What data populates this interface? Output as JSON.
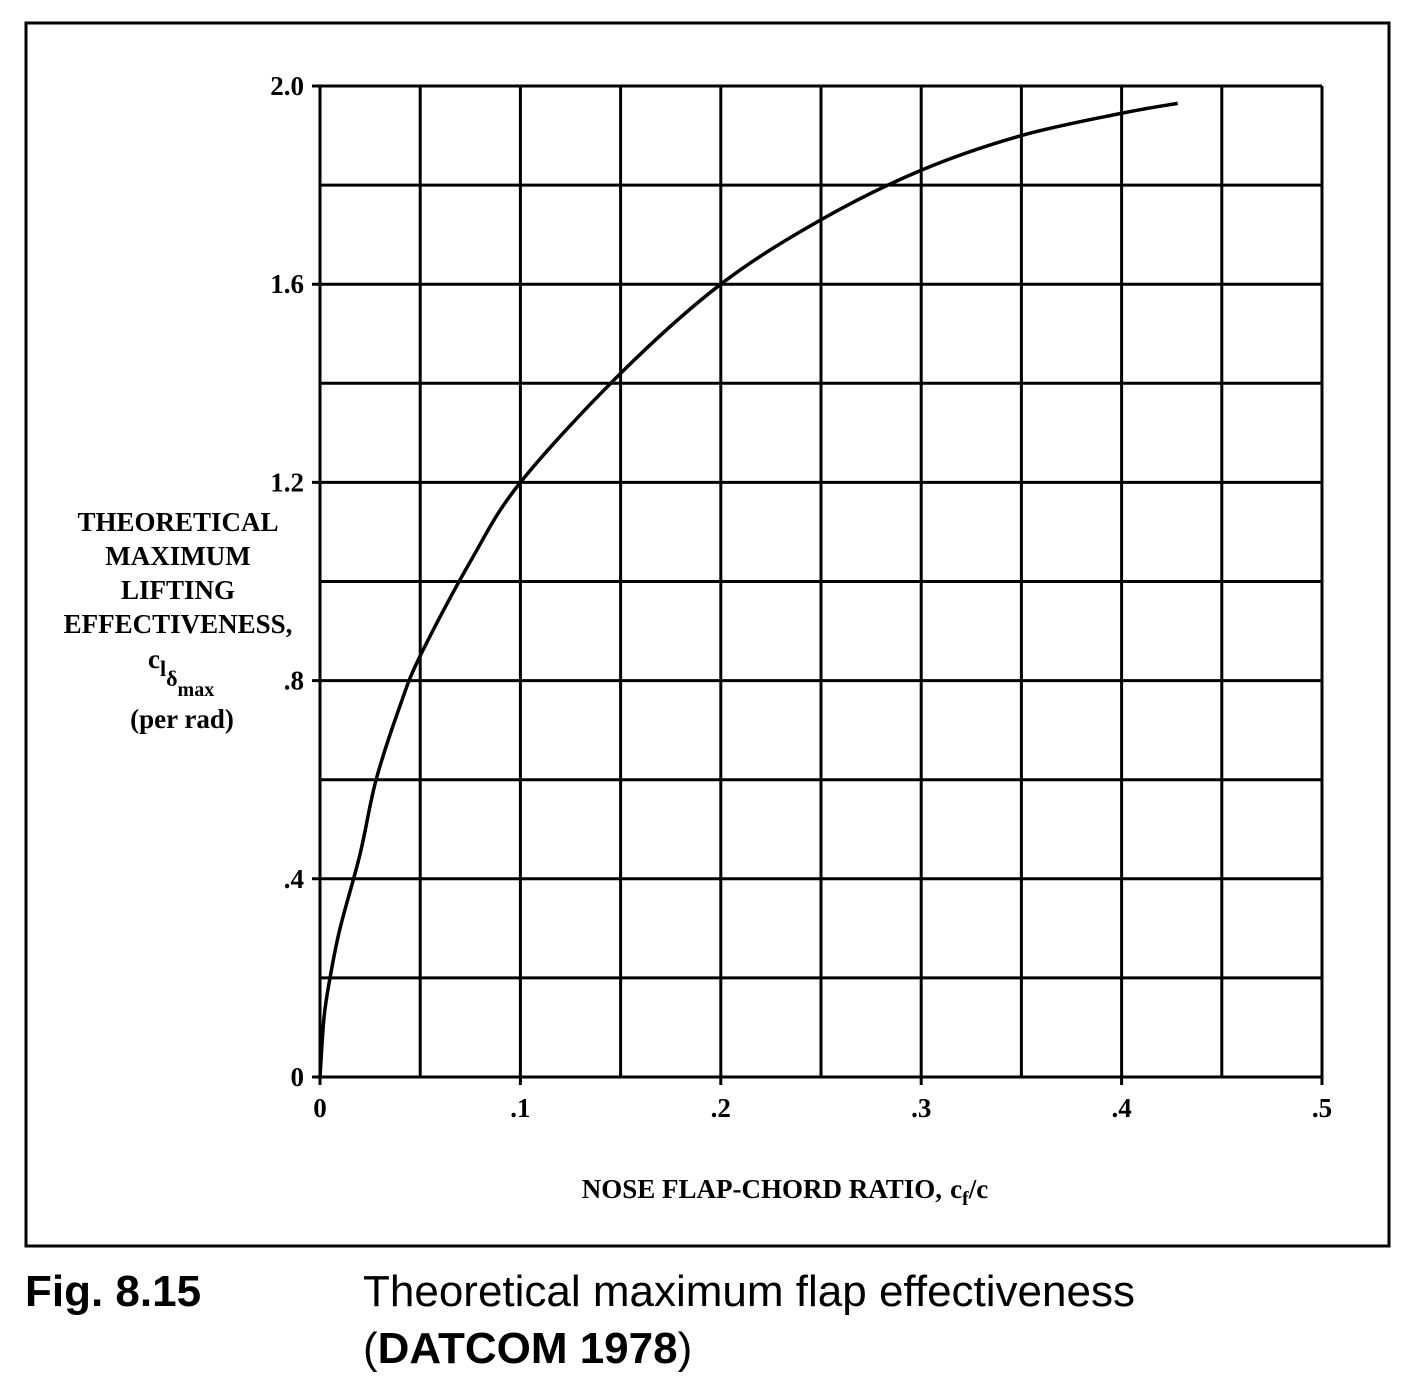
{
  "chart_data": {
    "type": "line",
    "ylabel_lines": [
      "THEORETICAL",
      "MAXIMUM",
      "LIFTING",
      "EFFECTIVENESS,"
    ],
    "ylabel_symbol": [
      "c",
      "l",
      "δ",
      "max"
    ],
    "ylabel_unit": "(per rad)",
    "xlabel": "NOSE FLAP-CHORD RATIO,",
    "xlabel_symbol": [
      "c",
      "f",
      "/c"
    ],
    "x": [
      0,
      0.002,
      0.005,
      0.01,
      0.02,
      0.028,
      0.04,
      0.05,
      0.075,
      0.1,
      0.15,
      0.2,
      0.25,
      0.3,
      0.35,
      0.4,
      0.428
    ],
    "values": [
      0,
      0.12,
      0.2,
      0.3,
      0.45,
      0.6,
      0.75,
      0.85,
      1.04,
      1.2,
      1.42,
      1.6,
      1.73,
      1.83,
      1.9,
      1.945,
      1.965
    ],
    "color": "#000000",
    "xlim": [
      0,
      0.5
    ],
    "ylim": [
      0,
      2
    ],
    "xticks": [
      0,
      {
        "value": 0.1,
        "label": ".1"
      },
      {
        "value": 0.2,
        "label": ".2"
      },
      {
        "value": 0.3,
        "label": ".3"
      },
      {
        "value": 0.4,
        "label": ".4"
      },
      {
        "value": 0.5,
        "label": ".5"
      }
    ],
    "yticks": [
      0,
      {
        "value": 0.4,
        "label": ".4"
      },
      {
        "value": 0.8,
        "label": ".8"
      },
      {
        "value": 1.2,
        "label": "1.2"
      },
      {
        "value": 1.6,
        "label": "1.6"
      },
      {
        "value": 2,
        "label": "2.0"
      }
    ],
    "xminor": [
      0.05,
      0.15,
      0.25,
      0.35,
      0.45
    ],
    "yminor": [
      0.2,
      0.6,
      1.0,
      1.4,
      1.8
    ],
    "grid": true
  },
  "caption": {
    "label": "Fig. 8.15",
    "text": "Theoretical maximum flap effectiveness",
    "source": "(DATCOM 1978)"
  }
}
